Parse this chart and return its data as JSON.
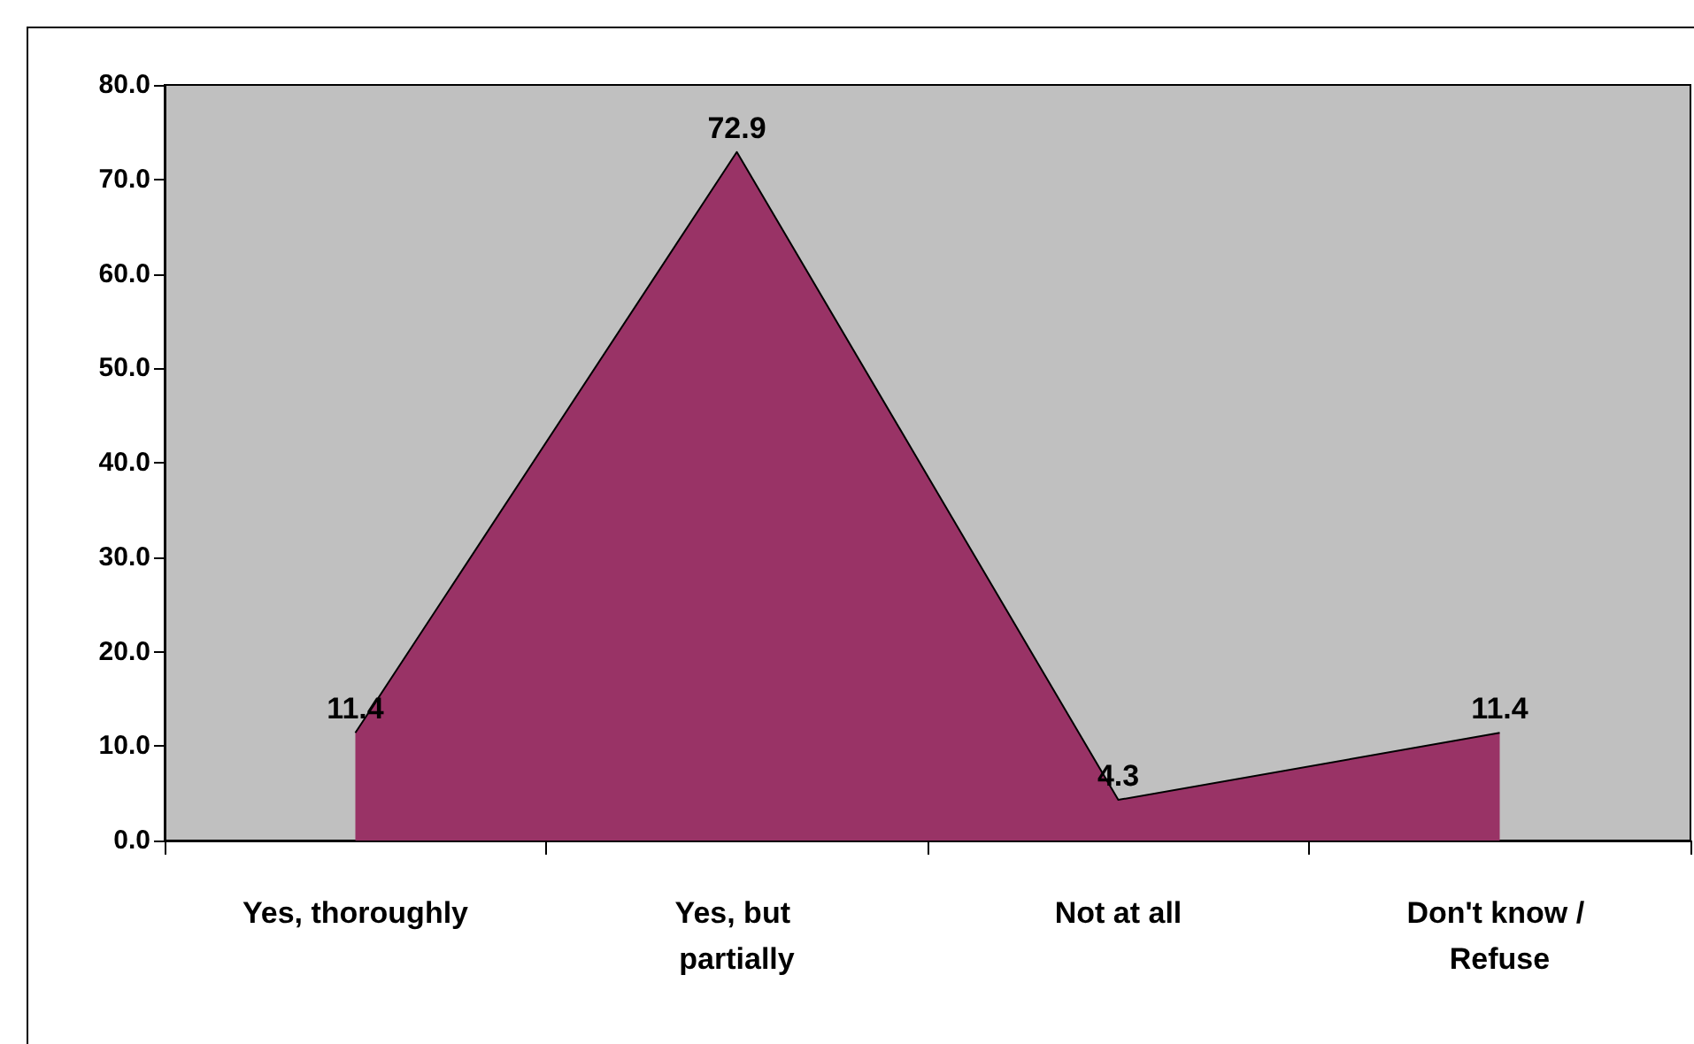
{
  "chart_data": {
    "type": "area",
    "categories": [
      "Yes, thoroughly",
      "Yes, but partially",
      "Not at all",
      "Don't know / Refuse"
    ],
    "values": [
      11.4,
      72.9,
      4.3,
      11.4
    ],
    "color": "#993366",
    "data_labels": true,
    "grid": false,
    "marker": "none",
    "ylim": [
      0,
      80
    ],
    "yticks": [
      {
        "value": 0,
        "label": "0.0"
      },
      {
        "value": 10,
        "label": "10.0"
      },
      {
        "value": 20,
        "label": "20.0"
      },
      {
        "value": 30,
        "label": "30.0"
      },
      {
        "value": 40,
        "label": "40.0"
      },
      {
        "value": 50,
        "label": "50.0"
      },
      {
        "value": 60,
        "label": "60.0"
      },
      {
        "value": 70,
        "label": "70.0"
      },
      {
        "value": 80,
        "label": "80.0"
      }
    ]
  }
}
